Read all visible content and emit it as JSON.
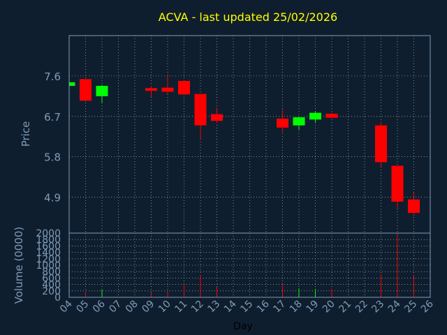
{
  "chart_data": {
    "type": "candlestick",
    "title": "ACVA - last updated 25/02/2026",
    "xlabel": "Day",
    "price_ylabel": "Price",
    "volume_ylabel": "Volume (0000)",
    "x_ticks": [
      "04",
      "05",
      "06",
      "07",
      "08",
      "09",
      "10",
      "11",
      "12",
      "13",
      "14",
      "15",
      "16",
      "17",
      "18",
      "19",
      "20",
      "21",
      "22",
      "23",
      "24",
      "25",
      "26"
    ],
    "price_ticks": [
      4.9,
      5.8,
      6.7,
      7.6
    ],
    "price_ylim": [
      4.1,
      8.5
    ],
    "volume_ticks": [
      0,
      200,
      400,
      600,
      800,
      1000,
      1200,
      1400,
      1600,
      1800,
      2000
    ],
    "volume_ylim": [
      0,
      2000
    ],
    "grid": true,
    "colors": {
      "background": "#0f1e2e",
      "frame": "#7f9cb8",
      "grid": "#c8d0d8",
      "title": "#ffff00",
      "label": "#7f9cb8",
      "up": "#00ff00",
      "down": "#ff0000"
    },
    "candles": [
      {
        "day": "04",
        "open": 7.38,
        "close": 7.46,
        "high": 7.47,
        "low": 7.37
      },
      {
        "day": "05",
        "open": 7.53,
        "close": 7.05,
        "high": 7.53,
        "low": 7.03
      },
      {
        "day": "06",
        "open": 7.15,
        "close": 7.38,
        "high": 7.4,
        "low": 7.0
      },
      {
        "day": "09",
        "open": 7.33,
        "close": 7.27,
        "high": 7.38,
        "low": 7.13
      },
      {
        "day": "10",
        "open": 7.34,
        "close": 7.25,
        "high": 7.62,
        "low": 7.2
      },
      {
        "day": "11",
        "open": 7.49,
        "close": 7.19,
        "high": 7.5,
        "low": 7.17
      },
      {
        "day": "12",
        "open": 7.2,
        "close": 6.5,
        "high": 7.2,
        "low": 6.2
      },
      {
        "day": "13",
        "open": 6.75,
        "close": 6.6,
        "high": 6.9,
        "low": 6.55
      },
      {
        "day": "17",
        "open": 6.65,
        "close": 6.45,
        "high": 6.85,
        "low": 6.34
      },
      {
        "day": "18",
        "open": 6.5,
        "close": 6.68,
        "high": 6.7,
        "low": 6.4
      },
      {
        "day": "19",
        "open": 6.63,
        "close": 6.78,
        "high": 6.82,
        "low": 6.55
      },
      {
        "day": "20",
        "open": 6.76,
        "close": 6.67,
        "high": 6.78,
        "low": 6.66
      },
      {
        "day": "23",
        "open": 6.5,
        "close": 5.68,
        "high": 6.58,
        "low": 5.57
      },
      {
        "day": "24",
        "open": 5.6,
        "close": 4.8,
        "high": 5.6,
        "low": 4.65
      },
      {
        "day": "25",
        "open": 4.85,
        "close": 4.55,
        "high": 5.0,
        "low": 4.48
      }
    ],
    "volumes": [
      {
        "day": "04",
        "value": 10,
        "dir": "up"
      },
      {
        "day": "05",
        "value": 170,
        "dir": "down"
      },
      {
        "day": "06",
        "value": 230,
        "dir": "up"
      },
      {
        "day": "09",
        "value": 150,
        "dir": "down"
      },
      {
        "day": "10",
        "value": 160,
        "dir": "down"
      },
      {
        "day": "11",
        "value": 400,
        "dir": "down"
      },
      {
        "day": "12",
        "value": 690,
        "dir": "down"
      },
      {
        "day": "13",
        "value": 320,
        "dir": "down"
      },
      {
        "day": "17",
        "value": 400,
        "dir": "down"
      },
      {
        "day": "18",
        "value": 280,
        "dir": "up"
      },
      {
        "day": "19",
        "value": 250,
        "dir": "up"
      },
      {
        "day": "20",
        "value": 270,
        "dir": "down"
      },
      {
        "day": "23",
        "value": 720,
        "dir": "down"
      },
      {
        "day": "24",
        "value": 1980,
        "dir": "down"
      },
      {
        "day": "25",
        "value": 700,
        "dir": "down"
      }
    ]
  }
}
